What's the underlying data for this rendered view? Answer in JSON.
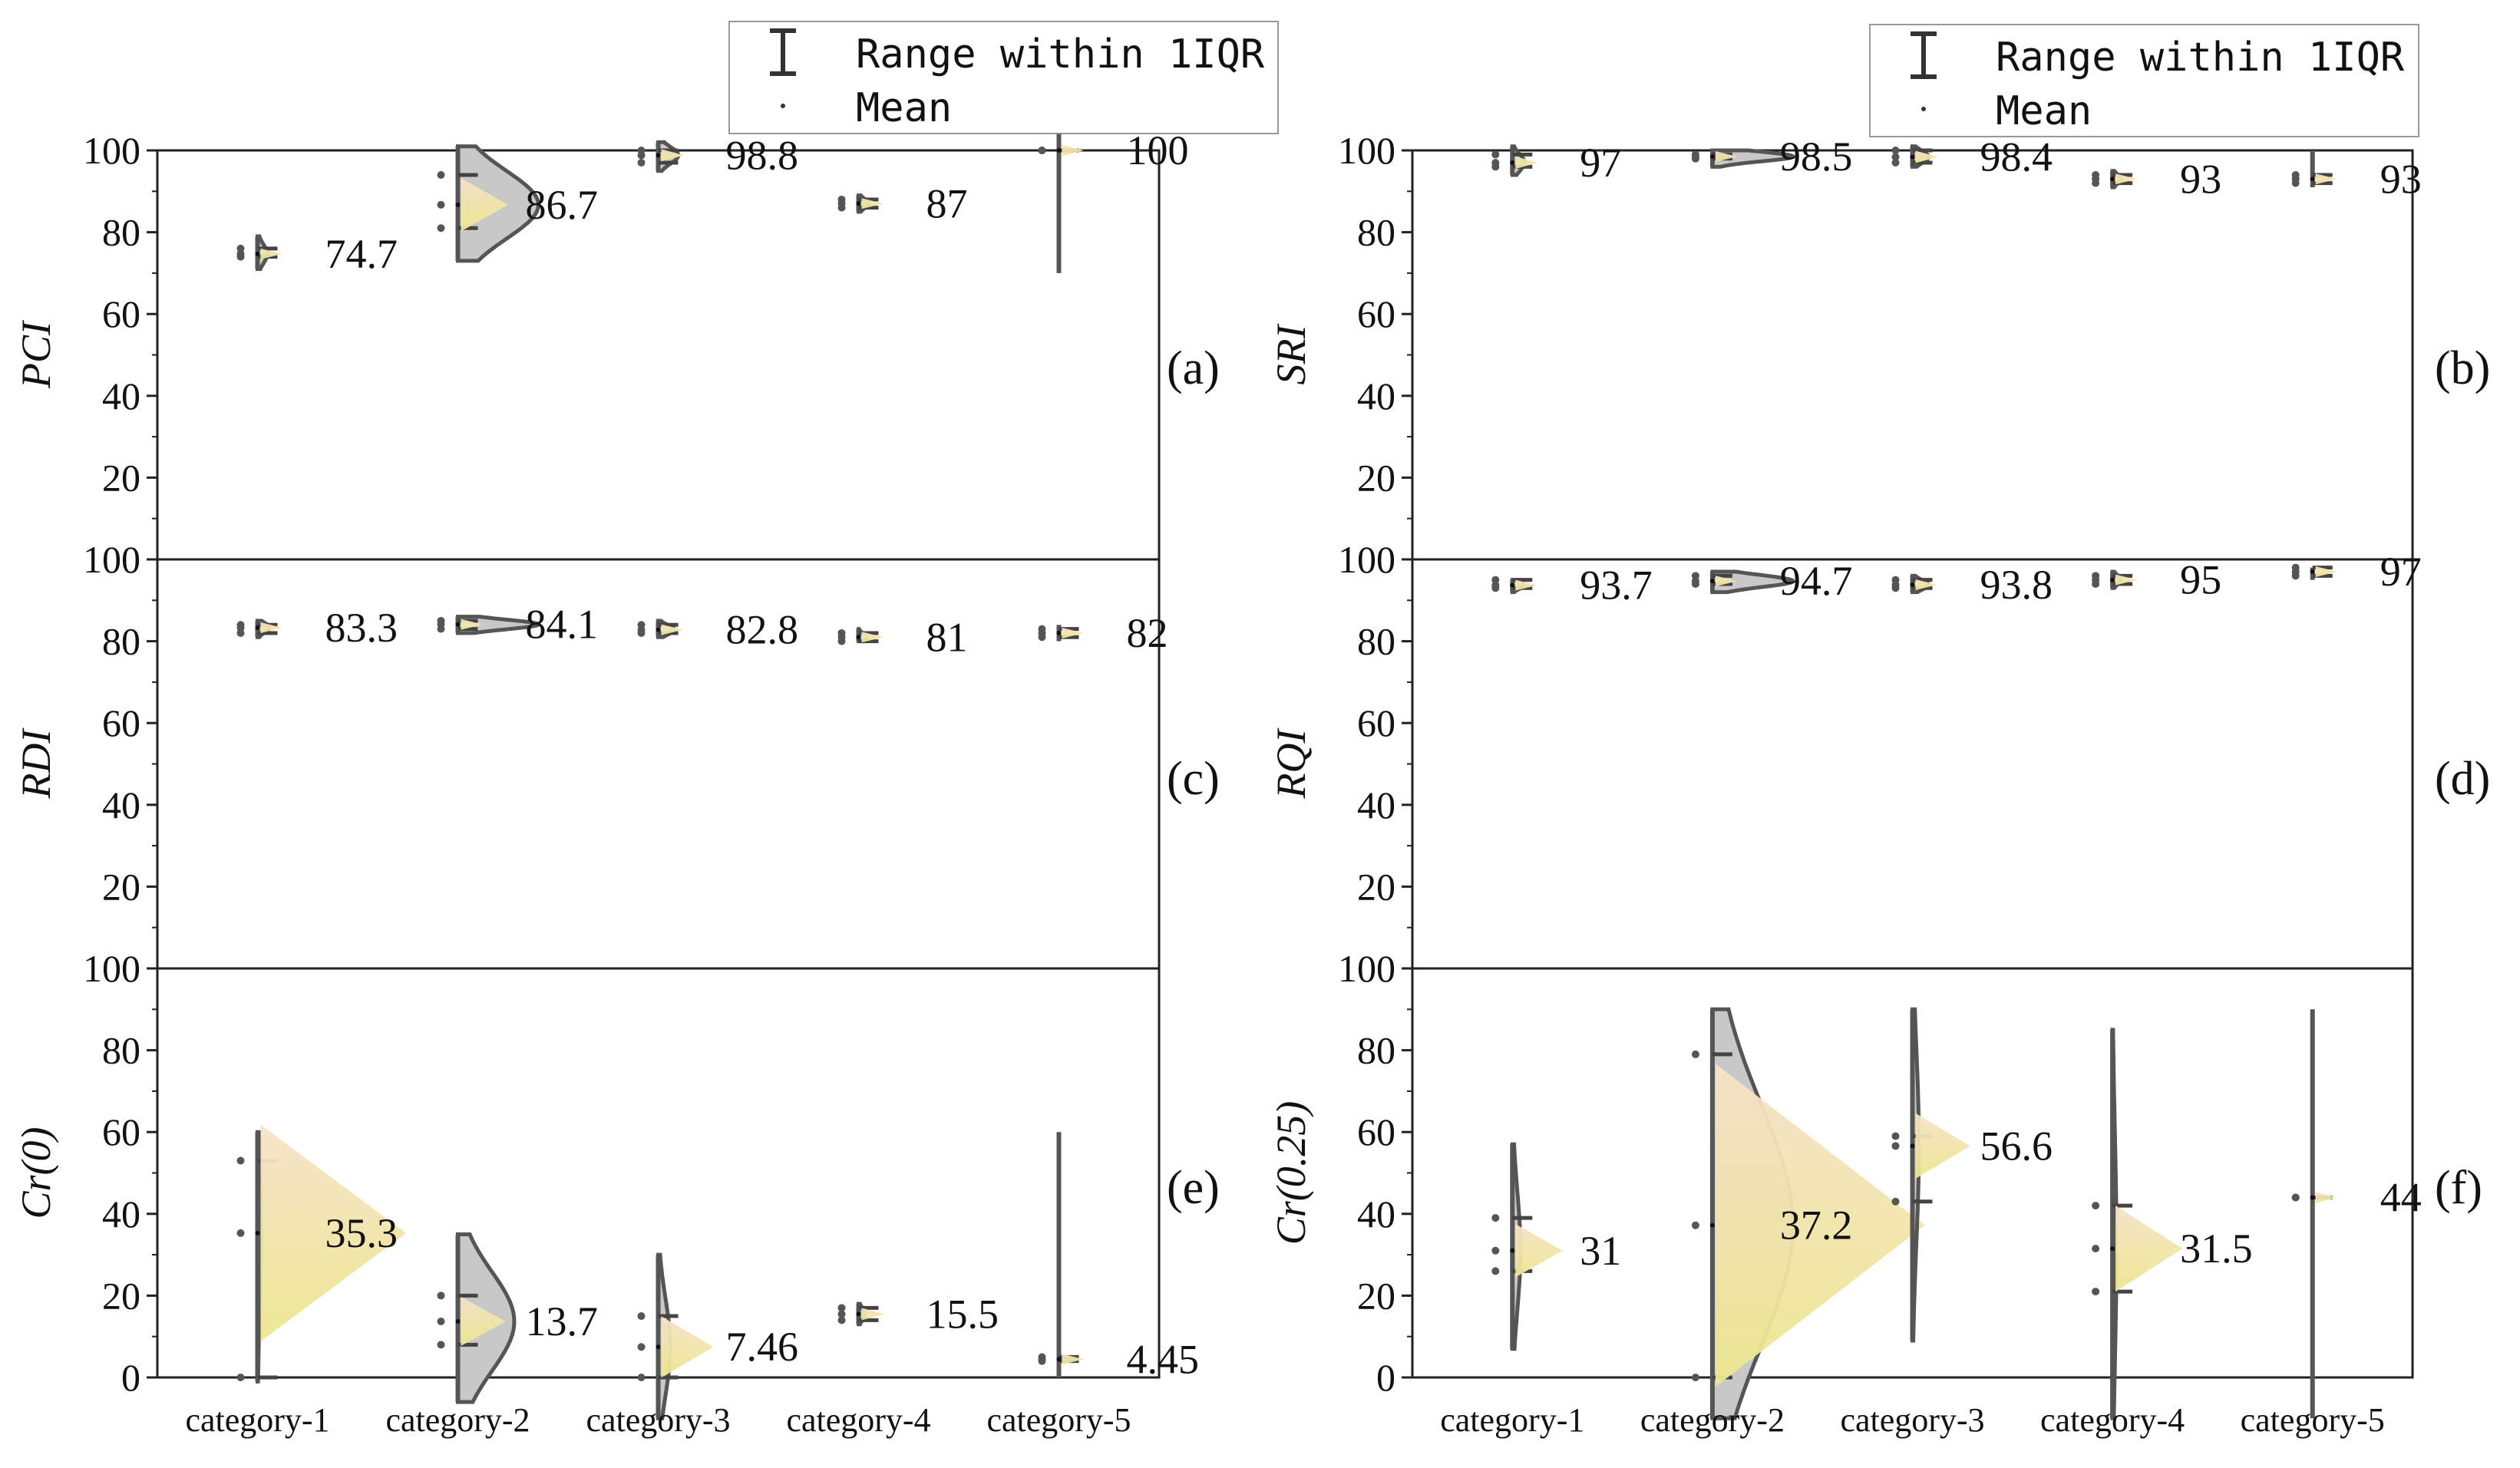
{
  "legend": {
    "items": [
      {
        "label": "Range within 1IQR",
        "symbol": "I"
      },
      {
        "label": "Mean",
        "symbol": "dot"
      }
    ]
  },
  "colors": {
    "violin_fill": "#c8c8c8",
    "violin_edge": "#555555",
    "triangle_top": "#f6e4c8",
    "triangle_bottom": "#ece79a",
    "box": "#444444"
  },
  "chart_data": [
    {
      "panel": "(a)",
      "type": "violin",
      "ylabel": "PCI",
      "ylim": [
        0,
        100
      ],
      "yticks": [
        20,
        40,
        60,
        80,
        100
      ],
      "categories": [
        "category-1",
        "category-2",
        "category-3",
        "category-4",
        "category-5"
      ],
      "means": [
        74.7,
        86.7,
        98.8,
        87,
        100
      ],
      "mean_labels": [
        "74.7",
        "86.7",
        "98.8",
        "87",
        "100"
      ],
      "iqr": [
        [
          74,
          76
        ],
        [
          81,
          94
        ],
        [
          97,
          100
        ],
        [
          86,
          88
        ],
        [
          100,
          100
        ]
      ],
      "range": [
        [
          71,
          79
        ],
        [
          73,
          101
        ],
        [
          95,
          102
        ],
        [
          85,
          89
        ],
        [
          70,
          104
        ]
      ],
      "violin_scale": [
        0.12,
        1.0,
        0.25,
        0.12,
        0.0
      ]
    },
    {
      "panel": "(b)",
      "type": "violin",
      "ylabel": "SRI",
      "ylim": [
        0,
        100
      ],
      "yticks": [
        20,
        40,
        60,
        80,
        100
      ],
      "categories": [
        "category-1",
        "category-2",
        "category-3",
        "category-4",
        "category-5"
      ],
      "means": [
        97,
        98.5,
        98.4,
        93,
        93
      ],
      "mean_labels": [
        "97",
        "98.5",
        "98.4",
        "93",
        "93"
      ],
      "iqr": [
        [
          96,
          99
        ],
        [
          98,
          99
        ],
        [
          97,
          100
        ],
        [
          92,
          94
        ],
        [
          92,
          94
        ]
      ],
      "range": [
        [
          94,
          101
        ],
        [
          96,
          100
        ],
        [
          96,
          101
        ],
        [
          91,
          95
        ],
        [
          91,
          100
        ]
      ],
      "violin_scale": [
        0.15,
        1.0,
        0.2,
        0.1,
        0.0
      ]
    },
    {
      "panel": "(c)",
      "type": "violin",
      "ylabel": "RDI",
      "ylim": [
        0,
        100
      ],
      "yticks": [
        20,
        40,
        60,
        80,
        100
      ],
      "categories": [
        "category-1",
        "category-2",
        "category-3",
        "category-4",
        "category-5"
      ],
      "means": [
        83.3,
        84.1,
        82.8,
        81,
        82
      ],
      "mean_labels": [
        "83.3",
        "84.1",
        "82.8",
        "81",
        "82"
      ],
      "iqr": [
        [
          82,
          84
        ],
        [
          83,
          85
        ],
        [
          82,
          84
        ],
        [
          80,
          82
        ],
        [
          81,
          83
        ]
      ],
      "range": [
        [
          81,
          85
        ],
        [
          82,
          86
        ],
        [
          81,
          85
        ],
        [
          80,
          83
        ],
        [
          80,
          84
        ]
      ],
      "violin_scale": [
        0.15,
        1.0,
        0.2,
        0.1,
        0.0
      ]
    },
    {
      "panel": "(d)",
      "type": "violin",
      "ylabel": "RQI",
      "ylim": [
        0,
        100
      ],
      "yticks": [
        20,
        40,
        60,
        80,
        100
      ],
      "categories": [
        "category-1",
        "category-2",
        "category-3",
        "category-4",
        "category-5"
      ],
      "means": [
        93.7,
        94.7,
        93.8,
        95,
        97
      ],
      "mean_labels": [
        "93.7",
        "94.7",
        "93.8",
        "95",
        "97"
      ],
      "iqr": [
        [
          93,
          95
        ],
        [
          94,
          96
        ],
        [
          93,
          95
        ],
        [
          94,
          96
        ],
        [
          96,
          98
        ]
      ],
      "range": [
        [
          92,
          95
        ],
        [
          92,
          97
        ],
        [
          92,
          96
        ],
        [
          93,
          97
        ],
        [
          95,
          98
        ]
      ],
      "violin_scale": [
        0.15,
        1.0,
        0.2,
        0.1,
        0.0
      ]
    },
    {
      "panel": "(e)",
      "type": "violin",
      "ylabel": "Cr(0)",
      "ylim": [
        0,
        100
      ],
      "yticks": [
        0,
        20,
        40,
        60,
        80,
        100
      ],
      "categories": [
        "category-1",
        "category-2",
        "category-3",
        "category-4",
        "category-5"
      ],
      "means": [
        35.3,
        13.7,
        7.46,
        15.5,
        4.45
      ],
      "mean_labels": [
        "35.3",
        "13.7",
        "7.46",
        "15.5",
        "4.45"
      ],
      "iqr": [
        [
          0,
          53
        ],
        [
          8,
          20
        ],
        [
          0,
          15
        ],
        [
          14,
          17
        ],
        [
          4,
          5
        ]
      ],
      "range": [
        [
          -1,
          60
        ],
        [
          -6,
          35
        ],
        [
          -10,
          30
        ],
        [
          13,
          18
        ],
        [
          0,
          60
        ]
      ],
      "violin_scale": [
        0.05,
        0.7,
        0.15,
        0.08,
        0.0
      ]
    },
    {
      "panel": "(f)",
      "type": "violin",
      "ylabel": "Cr(0.25)",
      "ylim": [
        0,
        100
      ],
      "yticks": [
        0,
        20,
        40,
        60,
        80,
        100
      ],
      "categories": [
        "category-1",
        "category-2",
        "category-3",
        "category-4",
        "category-5"
      ],
      "means": [
        31,
        37.2,
        56.6,
        31.5,
        44
      ],
      "mean_labels": [
        "31",
        "37.2",
        "56.6",
        "31.5",
        "44"
      ],
      "iqr": [
        [
          26,
          39
        ],
        [
          0,
          79
        ],
        [
          43,
          59
        ],
        [
          21,
          42
        ],
        [
          44,
          44
        ]
      ],
      "range": [
        [
          7,
          57
        ],
        [
          -10,
          90
        ],
        [
          9,
          90
        ],
        [
          -10,
          85
        ],
        [
          -10,
          90
        ]
      ],
      "violin_scale": [
        0.1,
        1.0,
        0.08,
        0.05,
        0.0
      ]
    }
  ]
}
